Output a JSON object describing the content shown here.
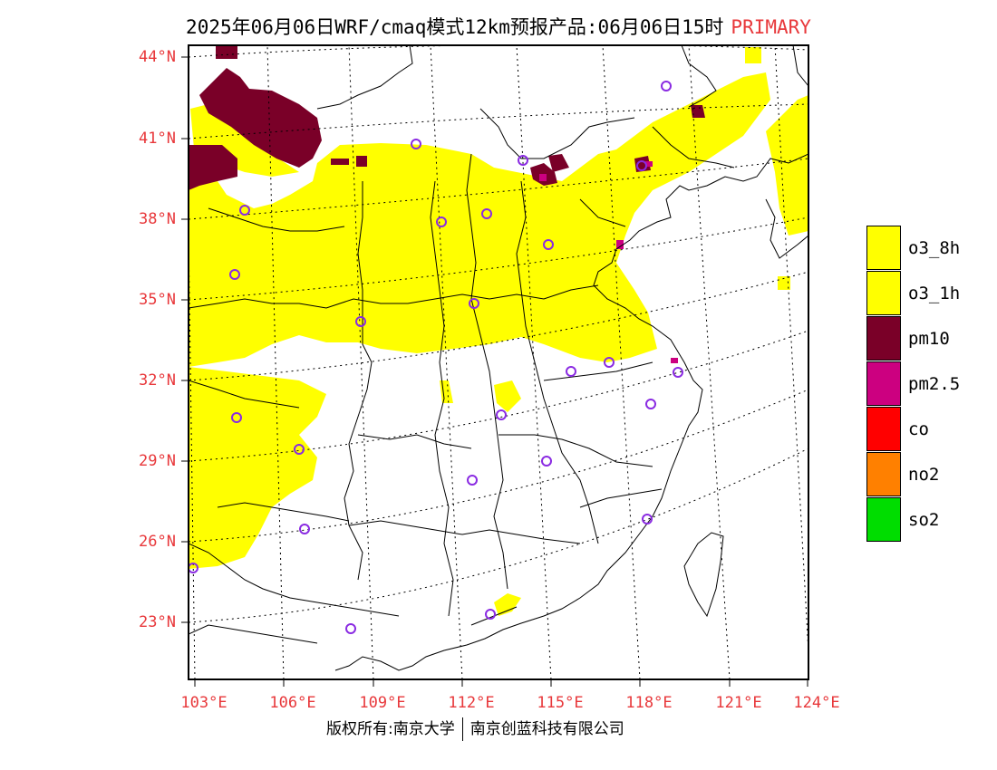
{
  "header": {
    "title": "2025年06月06日WRF/cmaq模式12km预报产品:06月06日15时",
    "primary_label": "PRIMARY"
  },
  "map": {
    "lat_labels": [
      "44°N",
      "41°N",
      "38°N",
      "35°N",
      "32°N",
      "29°N",
      "26°N",
      "23°N"
    ],
    "lon_labels": [
      "103°E",
      "106°E",
      "109°E",
      "112°E",
      "115°E",
      "118°E",
      "121°E",
      "124°E"
    ]
  },
  "legend": {
    "items": [
      {
        "label": "o3_8h",
        "color": "#ffff00"
      },
      {
        "label": "o3_1h",
        "color": "#ffff00"
      },
      {
        "label": "pm10",
        "color": "#7a0028"
      },
      {
        "label": "pm2.5",
        "color": "#cc0080"
      },
      {
        "label": "co",
        "color": "#ff0000"
      },
      {
        "label": "no2",
        "color": "#ff8000"
      },
      {
        "label": "so2",
        "color": "#00dd00"
      }
    ]
  },
  "footer": {
    "copyright_left": "版权所有:南京大学",
    "copyright_right": "南京创蓝科技有限公司"
  },
  "colors": {
    "label_red": "#e8383b",
    "station_marker": "#8a2be2",
    "yellow": "#ffff00",
    "pm10": "#7a0028",
    "pm25": "#cc0080"
  }
}
